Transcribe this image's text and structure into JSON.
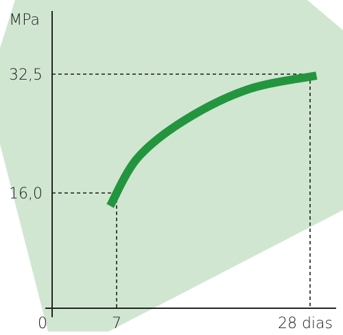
{
  "colors": {
    "background_panel": "#d0e6d1",
    "curve": "#23953f",
    "axis": "#222222",
    "guide": "#1a1a1a",
    "text": "#1a1a1a"
  },
  "chart_data": {
    "type": "line",
    "ylabel": "MPa",
    "xlabel": "",
    "origin_label": "0",
    "x_tick_labels": [
      "7",
      "28 dias"
    ],
    "y_tick_labels": [
      "16,0",
      "32,5"
    ],
    "xlim": [
      0,
      28
    ],
    "ylim": [
      0,
      37.5
    ],
    "series": [
      {
        "x": [
          6.3,
          9.3,
          14.5,
          21.3,
          28.7
        ],
        "y": [
          14.2,
          20.9,
          26.2,
          30.4,
          32.3
        ]
      }
    ],
    "reference_points": [
      {
        "x": 7,
        "y": 16.0
      },
      {
        "x": 28,
        "y": 32.5
      }
    ],
    "grid": false,
    "legend": "none"
  }
}
